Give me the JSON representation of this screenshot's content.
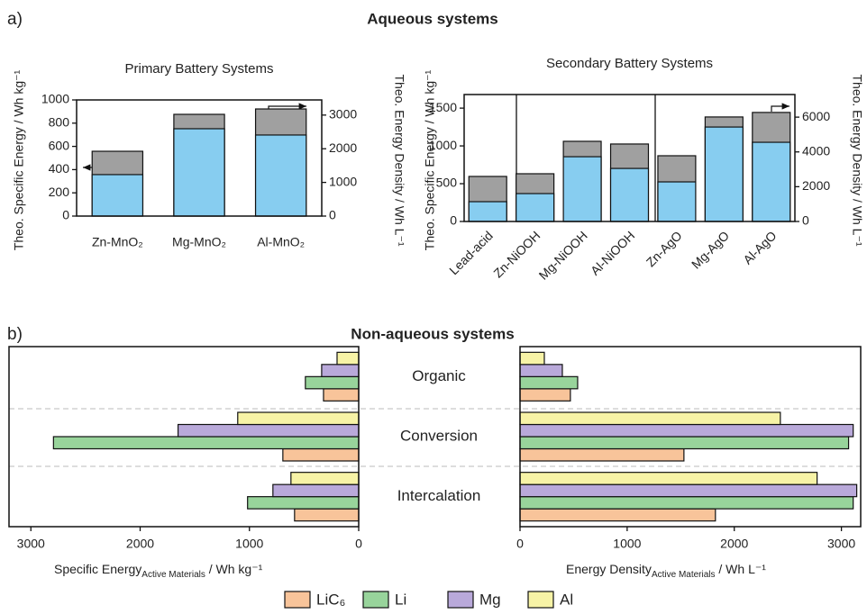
{
  "labels": {
    "a": "a)",
    "a_title": "Aqueous systems",
    "b": "b)",
    "b_title": "Non-aqueous systems"
  },
  "chart_data": [
    {
      "type": "bar",
      "title": "Primary Battery Systems",
      "categories": [
        "Zn-MnO₂",
        "Mg-MnO₂",
        "Al-MnO₂"
      ],
      "ylabel": "Theo. Specific Energy / Wh kg⁻¹",
      "y2label": "Theo. Energy Density / Wh L⁻¹",
      "ylim": [
        0,
        1000
      ],
      "yticks": [
        0,
        200,
        400,
        600,
        800,
        1000
      ],
      "y2lim": [
        0,
        3450
      ],
      "y2ticks": [
        0,
        1000,
        2000,
        3000
      ],
      "series": [
        {
          "color": "#a0a0a0",
          "axis": "y2",
          "values": [
            1925,
            3022,
            3182
          ]
        },
        {
          "color": "#87cdf0",
          "values": [
            357,
            752,
            698
          ]
        }
      ]
    },
    {
      "type": "bar",
      "title": "Secondary Battery Systems",
      "categories": [
        "Lead-acid",
        "Zn-NiOOH",
        "Mg-NiOOH",
        "Al-NiOOH",
        "Zn-AgO",
        "Mg-AgO",
        "Al-AgO"
      ],
      "ylabel": "Theo. Specific Energy / Wh kg⁻¹",
      "y2label": "Theo. Energy Density / Wh L⁻¹",
      "ylim": [
        0,
        1680
      ],
      "yticks": [
        0,
        500,
        1000,
        1500
      ],
      "y2lim": [
        0,
        7300
      ],
      "y2ticks": [
        0,
        2000,
        4000,
        6000
      ],
      "series": [
        {
          "color": "#a0a0a0",
          "axis": "y2",
          "values": [
            2590,
            2745,
            4610,
            4455,
            3780,
            6010,
            6270
          ]
        },
        {
          "color": "#87cdf0",
          "values": [
            262,
            369,
            857,
            702,
            524,
            1250,
            1048
          ]
        }
      ]
    },
    {
      "type": "barh",
      "categories": [
        "Organic",
        "Conversion",
        "Intercalation"
      ],
      "xlabel": {
        "main": "Specific Energy",
        "sub": "Active Materials",
        "unit": " / Wh kg⁻¹"
      },
      "xlim": [
        3200,
        0
      ],
      "xticks": [
        3000,
        2000,
        1000,
        0
      ],
      "series": [
        {
          "name": "LiC₆",
          "color": "#f8c49a",
          "values": [
            322,
            694,
            587
          ]
        },
        {
          "name": "Li",
          "color": "#98d49b",
          "values": [
            488,
            2793,
            1017
          ]
        },
        {
          "name": "Mg",
          "color": "#b9a9da",
          "values": [
            339,
            1653,
            785
          ]
        },
        {
          "name": "Al",
          "color": "#f7f3a6",
          "values": [
            198,
            1107,
            620
          ]
        }
      ]
    },
    {
      "type": "barh",
      "xlabel": {
        "main": "Energy Density",
        "sub": "Active Materials",
        "unit": " / Wh L⁻¹"
      },
      "xlim": [
        0,
        3180
      ],
      "xticks": [
        0,
        1000,
        2000,
        3000
      ],
      "series": [
        {
          "color": "#f8c49a",
          "values": [
            470,
            1530,
            1824
          ]
        },
        {
          "color": "#98d49b",
          "values": [
            538,
            3067,
            3110
          ]
        },
        {
          "color": "#b9a9da",
          "values": [
            395,
            3110,
            3143
          ]
        },
        {
          "color": "#f7f3a6",
          "values": [
            227,
            2430,
            2773
          ]
        }
      ]
    }
  ]
}
